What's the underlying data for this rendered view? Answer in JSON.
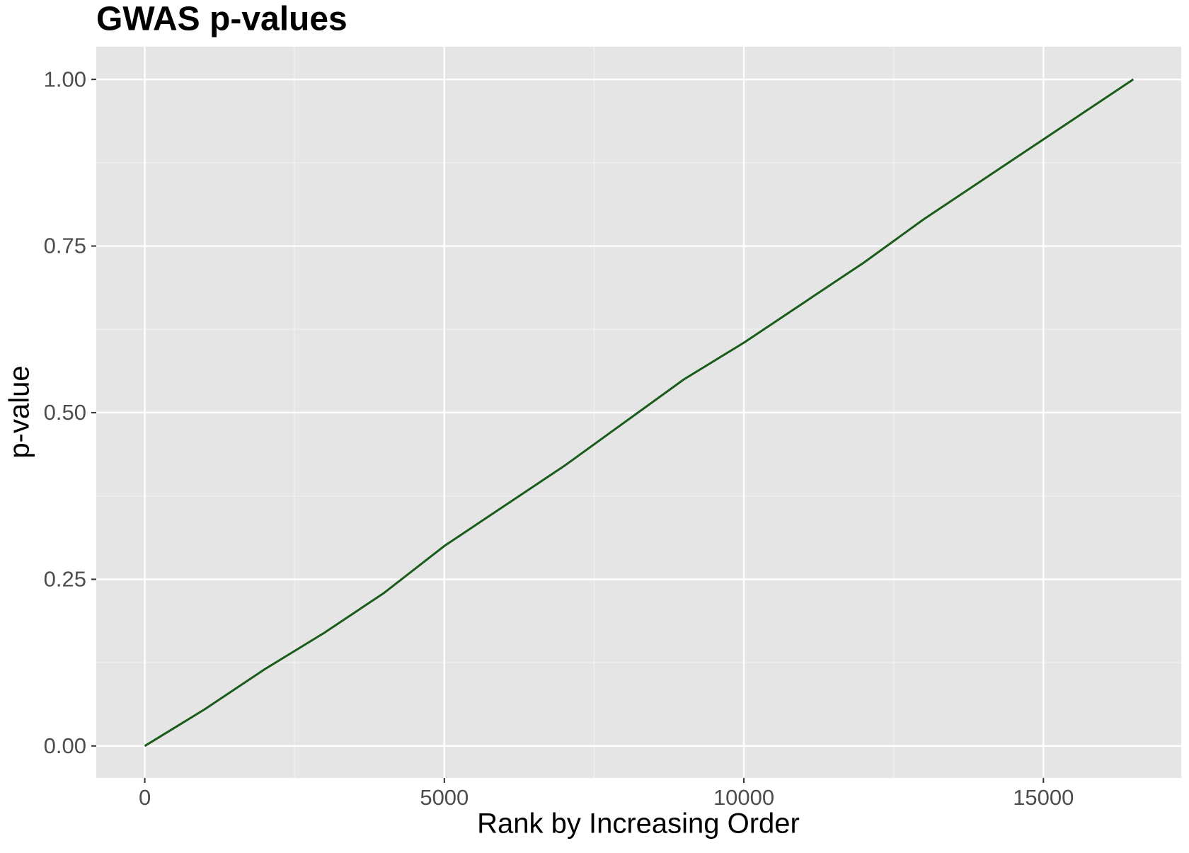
{
  "chart_data": {
    "type": "line",
    "title": "GWAS p-values",
    "x_label": "Rank by Increasing Order",
    "y_label": "p-value",
    "x": [
      0,
      1000,
      2000,
      3000,
      4000,
      5000,
      6000,
      7000,
      8000,
      9000,
      10000,
      11000,
      12000,
      13000,
      14000,
      15000,
      16500
    ],
    "values": [
      0,
      0.055,
      0.115,
      0.17,
      0.23,
      0.3,
      0.36,
      0.42,
      0.485,
      0.55,
      0.605,
      0.665,
      0.725,
      0.79,
      0.85,
      0.91,
      1.0
    ],
    "color": "#1a5c1a",
    "xlim": [
      -810,
      17300
    ],
    "ylim": [
      -0.048,
      1.049
    ],
    "xticks": [
      0,
      5000,
      10000,
      15000
    ],
    "yticks": [
      {
        "value": 0,
        "label": "0.00"
      },
      {
        "value": 0.25,
        "label": "0.25"
      },
      {
        "value": 0.5,
        "label": "0.50"
      },
      {
        "value": 0.75,
        "label": "0.75"
      },
      {
        "value": 1,
        "label": "1.00"
      }
    ],
    "grid": true
  }
}
